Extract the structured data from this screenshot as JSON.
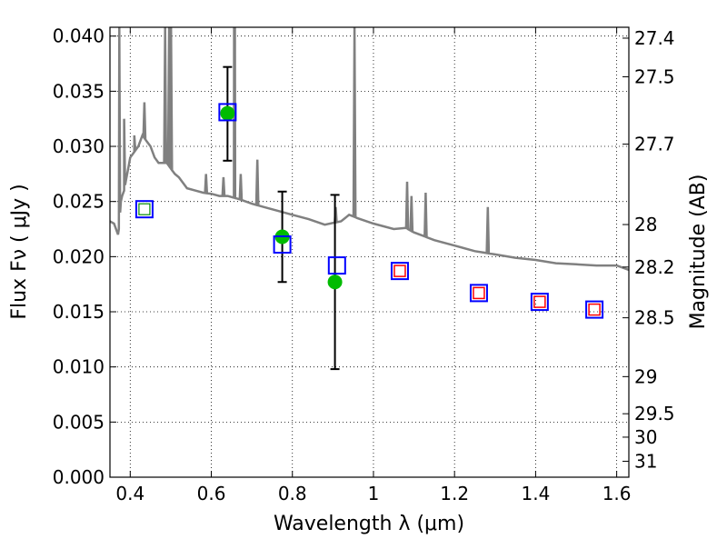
{
  "chart_data": {
    "type": "scatter",
    "xlabel": "Wavelength  λ (μm)",
    "ylabel": "Flux  Fν  ( μJy )",
    "y2label": "Magnitude (AB)",
    "xlim": [
      0.35,
      1.63
    ],
    "ylim": [
      0.0,
      0.0408
    ],
    "x_ticks": [
      0.4,
      0.6,
      0.8,
      1.0,
      1.2,
      1.4,
      1.6
    ],
    "x_tick_labels": [
      "0.4",
      "0.6",
      "0.8",
      "1",
      "1.2",
      "1.4",
      "1.6"
    ],
    "y_ticks": [
      0.0,
      0.005,
      0.01,
      0.015,
      0.02,
      0.025,
      0.03,
      0.035,
      0.04
    ],
    "y_tick_labels": [
      "0.000",
      "0.005",
      "0.010",
      "0.015",
      "0.020",
      "0.025",
      "0.030",
      "0.035",
      "0.040"
    ],
    "mag_ticks": [
      27.4,
      27.5,
      27.7,
      28,
      28.2,
      28.5,
      29,
      29.5,
      30,
      31
    ],
    "mag_tick_labels": [
      "27.4",
      "27.5",
      "27.7",
      "28",
      "28.2",
      "28.5",
      "29",
      "29.5",
      "30",
      "31"
    ],
    "grid": true,
    "legend": "none",
    "colors": {
      "model": "#808080",
      "observed": "#00bb00",
      "model_band": "#0000ff",
      "inner_square_green": "#008800",
      "inner_square_red": "#ff0000",
      "errorbar": "#000000"
    },
    "series": [
      {
        "kind": "model-spectrum",
        "x": [
          0.35,
          0.36,
          0.37,
          0.372,
          0.375,
          0.377,
          0.38,
          0.385,
          0.39,
          0.395,
          0.4,
          0.41,
          0.42,
          0.43,
          0.44,
          0.45,
          0.46,
          0.47,
          0.48,
          0.49,
          0.5,
          0.51,
          0.52,
          0.54,
          0.56,
          0.58,
          0.6,
          0.62,
          0.64,
          0.65,
          0.66,
          0.67,
          0.7,
          0.73,
          0.76,
          0.8,
          0.84,
          0.88,
          0.92,
          0.94,
          0.96,
          1.0,
          1.05,
          1.08,
          1.1,
          1.15,
          1.2,
          1.25,
          1.3,
          1.35,
          1.4,
          1.45,
          1.5,
          1.55,
          1.6,
          1.63
        ],
        "y": [
          0.0232,
          0.023,
          0.022,
          0.0225,
          0.024,
          0.025,
          0.0255,
          0.026,
          0.027,
          0.028,
          0.029,
          0.0295,
          0.03,
          0.031,
          0.0305,
          0.03,
          0.029,
          0.0285,
          0.0285,
          0.0285,
          0.028,
          0.0275,
          0.0272,
          0.0262,
          0.026,
          0.0258,
          0.0257,
          0.0255,
          0.0255,
          0.0254,
          0.0253,
          0.0252,
          0.0248,
          0.0245,
          0.0242,
          0.0238,
          0.0234,
          0.0229,
          0.0232,
          0.0238,
          0.0235,
          0.023,
          0.0225,
          0.0226,
          0.0222,
          0.0215,
          0.021,
          0.0205,
          0.0202,
          0.0199,
          0.0197,
          0.0194,
          0.0193,
          0.0192,
          0.0192,
          0.0188
        ]
      },
      {
        "kind": "emission-lines",
        "lines": [
          {
            "x": 0.373,
            "peak": 0.0408
          },
          {
            "x": 0.385,
            "peak": 0.0325
          },
          {
            "x": 0.41,
            "peak": 0.031
          },
          {
            "x": 0.435,
            "peak": 0.034
          },
          {
            "x": 0.486,
            "peak": 0.0408
          },
          {
            "x": 0.4959,
            "peak": 0.0408
          },
          {
            "x": 0.5007,
            "peak": 0.0408
          },
          {
            "x": 0.587,
            "peak": 0.0275
          },
          {
            "x": 0.63,
            "peak": 0.0272
          },
          {
            "x": 0.6563,
            "peak": 0.0408
          },
          {
            "x": 0.6583,
            "peak": 0.0408
          },
          {
            "x": 0.6725,
            "peak": 0.0275
          },
          {
            "x": 0.7135,
            "peak": 0.0288
          },
          {
            "x": 0.9069,
            "peak": 0.0245
          },
          {
            "x": 0.9532,
            "peak": 0.0408
          },
          {
            "x": 1.083,
            "peak": 0.0268
          },
          {
            "x": 1.0938,
            "peak": 0.0255
          },
          {
            "x": 1.1287,
            "peak": 0.0258
          },
          {
            "x": 1.282,
            "peak": 0.0245
          }
        ]
      },
      {
        "kind": "observed",
        "x": [
          0.64,
          0.775,
          0.905
        ],
        "y": [
          0.033,
          0.0218,
          0.0177
        ],
        "err_low": [
          0.0287,
          0.0177,
          0.0098
        ],
        "err_high": [
          0.0372,
          0.0259,
          0.0256
        ]
      },
      {
        "kind": "model-band",
        "x": [
          0.435,
          0.64,
          0.775,
          0.91,
          1.065,
          1.26,
          1.41,
          1.545
        ],
        "y": [
          0.0243,
          0.0331,
          0.0211,
          0.0192,
          0.0187,
          0.0167,
          0.0159,
          0.0152
        ],
        "inner": [
          "green",
          "none",
          "none",
          "none",
          "red",
          "red",
          "red",
          "red"
        ]
      }
    ]
  }
}
